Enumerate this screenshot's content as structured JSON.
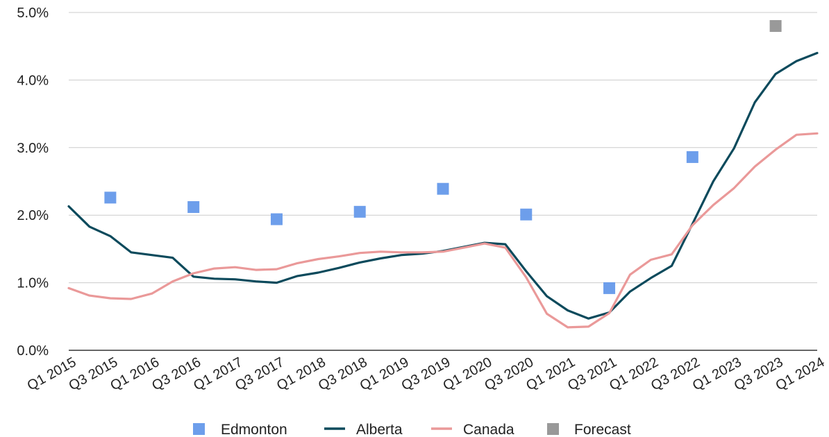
{
  "chart_data": {
    "type": "line",
    "title": "",
    "xlabel": "",
    "ylabel": "",
    "ylim": [
      0,
      5
    ],
    "y_ticks": [
      "0.0%",
      "1.0%",
      "2.0%",
      "3.0%",
      "4.0%",
      "5.0%"
    ],
    "y_tick_values": [
      0,
      1,
      2,
      3,
      4,
      5
    ],
    "grid": "horizontal",
    "legend_position": "bottom",
    "categories": [
      "Q1 2015",
      "Q2 2015",
      "Q3 2015",
      "Q4 2015",
      "Q1 2016",
      "Q2 2016",
      "Q3 2016",
      "Q4 2016",
      "Q1 2017",
      "Q2 2017",
      "Q3 2017",
      "Q4 2017",
      "Q1 2018",
      "Q2 2018",
      "Q3 2018",
      "Q4 2018",
      "Q1 2019",
      "Q2 2019",
      "Q3 2019",
      "Q4 2019",
      "Q1 2020",
      "Q2 2020",
      "Q3 2020",
      "Q4 2020",
      "Q1 2021",
      "Q2 2021",
      "Q3 2021",
      "Q4 2021",
      "Q1 2022",
      "Q2 2022",
      "Q3 2022",
      "Q4 2022",
      "Q1 2023",
      "Q2 2023",
      "Q3 2023",
      "Q4 2023",
      "Q1 2024"
    ],
    "x_tick_labels": [
      "Q1 2015",
      "Q3 2015",
      "Q1 2016",
      "Q3 2016",
      "Q1 2017",
      "Q3 2017",
      "Q1 2018",
      "Q3 2018",
      "Q1 2019",
      "Q3 2019",
      "Q1 2020",
      "Q3 2020",
      "Q1 2021",
      "Q3 2021",
      "Q1 2022",
      "Q3 2022",
      "Q1 2023",
      "Q3 2023",
      "Q1 2024"
    ],
    "series": [
      {
        "name": "Edmonton",
        "kind": "scatter",
        "color": "#6d9eeb",
        "points": [
          {
            "x": "Q3 2015",
            "y": 2.26
          },
          {
            "x": "Q3 2016",
            "y": 2.12
          },
          {
            "x": "Q3 2017",
            "y": 1.94
          },
          {
            "x": "Q3 2018",
            "y": 2.05
          },
          {
            "x": "Q3 2019",
            "y": 2.39
          },
          {
            "x": "Q3 2020",
            "y": 2.01
          },
          {
            "x": "Q3 2021",
            "y": 0.92
          },
          {
            "x": "Q3 2022",
            "y": 2.86
          }
        ]
      },
      {
        "name": "Alberta",
        "kind": "line",
        "color": "#0c4a5c",
        "values": [
          2.13,
          1.83,
          1.69,
          1.45,
          1.41,
          1.37,
          1.09,
          1.06,
          1.05,
          1.02,
          1.0,
          1.1,
          1.15,
          1.22,
          1.3,
          1.36,
          1.41,
          1.43,
          1.47,
          1.53,
          1.59,
          1.57,
          1.17,
          0.8,
          0.59,
          0.47,
          0.56,
          0.87,
          1.07,
          1.25,
          1.87,
          2.5,
          2.99,
          3.67,
          4.09,
          4.28,
          4.4
        ]
      },
      {
        "name": "Canada",
        "kind": "line",
        "color": "#ea9999",
        "values": [
          0.92,
          0.81,
          0.77,
          0.76,
          0.84,
          1.02,
          1.14,
          1.21,
          1.23,
          1.19,
          1.2,
          1.29,
          1.35,
          1.39,
          1.44,
          1.46,
          1.45,
          1.45,
          1.46,
          1.52,
          1.58,
          1.52,
          1.08,
          0.54,
          0.34,
          0.35,
          0.55,
          1.12,
          1.34,
          1.42,
          1.85,
          2.15,
          2.4,
          2.72,
          2.97,
          3.19,
          3.21
        ]
      },
      {
        "name": "Forecast",
        "kind": "scatter",
        "color": "#999999",
        "points": [
          {
            "x": "Q3 2023",
            "y": 4.8
          }
        ]
      }
    ]
  }
}
